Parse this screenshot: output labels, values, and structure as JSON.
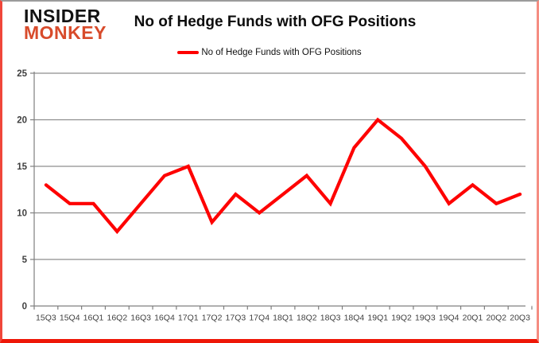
{
  "logo": {
    "line1": "INSIDER",
    "line2": "MONKEY"
  },
  "header": {
    "title": "No of Hedge Funds with OFG Positions"
  },
  "legend": {
    "label": "No of Hedge Funds with OFG Positions",
    "swatch_color": "#fe0000"
  },
  "colors": {
    "series": "#fe0000",
    "grid": "#8e8e8e",
    "axis": "#7f7f7f",
    "axis_text": "#3f3f3f",
    "logo_black": "#121212",
    "logo_orange": "#d84b2b",
    "frame_red": "#ee1708",
    "frame_grey": "#9b9b9b"
  },
  "chart_data": {
    "type": "line",
    "title": "No of Hedge Funds with OFG Positions",
    "categories": [
      "15Q3",
      "15Q4",
      "16Q1",
      "16Q2",
      "16Q3",
      "16Q4",
      "17Q1",
      "17Q2",
      "17Q3",
      "17Q4",
      "18Q1",
      "18Q2",
      "18Q3",
      "18Q4",
      "19Q1",
      "19Q2",
      "19Q3",
      "19Q4",
      "20Q1",
      "20Q2",
      "20Q3"
    ],
    "series": [
      {
        "name": "No of Hedge Funds with OFG Positions",
        "color": "#fe0000",
        "values": [
          13,
          11,
          11,
          8,
          11,
          14,
          15,
          9,
          12,
          10,
          12,
          14,
          11,
          17,
          20,
          18,
          15,
          11,
          13,
          11,
          12
        ]
      }
    ],
    "xlabel": "",
    "ylabel": "",
    "ylim": [
      0,
      25
    ],
    "yticks": [
      0,
      5,
      10,
      15,
      20,
      25
    ],
    "grid": true,
    "legend_position": "top-center"
  }
}
